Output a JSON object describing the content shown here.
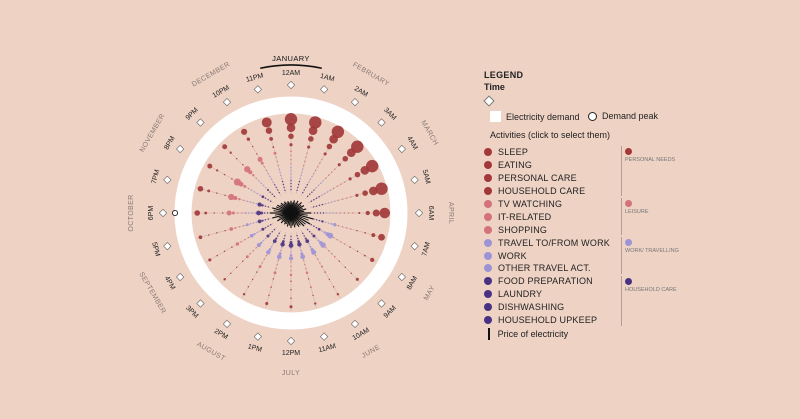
{
  "months": [
    "JANUARY",
    "FEBRUARY",
    "MARCH",
    "APRIL",
    "MAY",
    "JUNE",
    "JULY",
    "AUGUST",
    "SEPTEMBER",
    "OCTOBER",
    "NOVEMBER",
    "DECEMBER"
  ],
  "hours": [
    "12AM",
    "1AM",
    "2AM",
    "3AM",
    "4AM",
    "5AM",
    "6AM",
    "7AM",
    "8AM",
    "9AM",
    "10AM",
    "11AM",
    "12PM",
    "1PM",
    "2PM",
    "3PM",
    "4PM",
    "5PM",
    "6PM",
    "7PM",
    "8PM",
    "9PM",
    "10PM",
    "11PM"
  ],
  "selected_month": "JANUARY",
  "legend": {
    "title": "LEGEND",
    "time": "Time",
    "demand": "Electricity demand",
    "peak": "Demand peak",
    "activities_title": "Activities (click to select them)",
    "price": "Price of electricity"
  },
  "activities": [
    {
      "label": "SLEEP",
      "color": "#a2383a"
    },
    {
      "label": "EATING",
      "color": "#a2383a"
    },
    {
      "label": "PERSONAL CARE",
      "color": "#a2383a"
    },
    {
      "label": "HOUSEHOLD CARE",
      "color": "#a2383a"
    },
    {
      "label": "TV WATCHING",
      "color": "#d4727a"
    },
    {
      "label": "IT-RELATED",
      "color": "#d4727a"
    },
    {
      "label": "SHOPPING",
      "color": "#d4727a"
    },
    {
      "label": "TRAVEL TO/FROM WORK",
      "color": "#9d94d6"
    },
    {
      "label": "WORK",
      "color": "#9d94d6"
    },
    {
      "label": "OTHER TRAVEL ACT.",
      "color": "#9d94d6"
    },
    {
      "label": "FOOD PREPARATION",
      "color": "#4a3283"
    },
    {
      "label": "LAUNDRY",
      "color": "#4a3283"
    },
    {
      "label": "DISHWASHING",
      "color": "#4a3283"
    },
    {
      "label": "HOUSEHOLD UPKEEP",
      "color": "#4a3283"
    }
  ],
  "groups": [
    {
      "label": "PERSONAL NEEDS",
      "color": "#a2383a"
    },
    {
      "label": "LEISURE",
      "color": "#d4727a"
    },
    {
      "label": "WORK/ TRAVELLING",
      "color": "#9d94d6"
    },
    {
      "label": "HOUSEHOLD CARE",
      "color": "#4a3283"
    }
  ],
  "chart_data": {
    "type": "radial-dot",
    "hours": [
      "12AM",
      "1AM",
      "2AM",
      "3AM",
      "4AM",
      "5AM",
      "6AM",
      "7AM",
      "8AM",
      "9AM",
      "10AM",
      "11AM",
      "12PM",
      "1PM",
      "2PM",
      "3PM",
      "4PM",
      "5PM",
      "6PM",
      "7PM",
      "8PM",
      "9PM",
      "10PM",
      "11PM"
    ],
    "demand_peak_hour": "6PM",
    "series": [
      {
        "group": "PERSONAL NEEDS",
        "values": [
          1.0,
          1.0,
          1.0,
          1.0,
          1.0,
          1.0,
          0.85,
          0.55,
          0.35,
          0.25,
          0.2,
          0.2,
          0.25,
          0.25,
          0.2,
          0.2,
          0.25,
          0.3,
          0.45,
          0.45,
          0.4,
          0.4,
          0.5,
          0.8
        ]
      },
      {
        "group": "LEISURE",
        "values": [
          0.2,
          0.1,
          0.05,
          0.03,
          0.02,
          0.02,
          0.05,
          0.1,
          0.15,
          0.2,
          0.25,
          0.3,
          0.3,
          0.35,
          0.35,
          0.35,
          0.4,
          0.45,
          0.6,
          0.75,
          0.85,
          0.75,
          0.6,
          0.35
        ]
      },
      {
        "group": "WORK/ TRAVELLING",
        "values": [
          0.02,
          0.02,
          0.02,
          0.02,
          0.02,
          0.05,
          0.15,
          0.5,
          0.85,
          0.8,
          0.75,
          0.7,
          0.6,
          0.7,
          0.65,
          0.6,
          0.55,
          0.45,
          0.3,
          0.2,
          0.1,
          0.05,
          0.03,
          0.02
        ]
      },
      {
        "group": "HOUSEHOLD CARE",
        "values": [
          0.05,
          0.03,
          0.02,
          0.02,
          0.02,
          0.05,
          0.15,
          0.35,
          0.4,
          0.45,
          0.55,
          0.65,
          0.7,
          0.65,
          0.55,
          0.45,
          0.45,
          0.55,
          0.7,
          0.6,
          0.4,
          0.3,
          0.15,
          0.08
        ]
      }
    ],
    "price": [
      0.4,
      0.45,
      0.5,
      0.55,
      0.55,
      0.6,
      0.85,
      1.0,
      0.95,
      0.75,
      0.6,
      0.55,
      0.55,
      0.5,
      0.45,
      0.5,
      0.6,
      0.8,
      0.9,
      0.8,
      0.6,
      0.5,
      0.45,
      0.4
    ]
  }
}
